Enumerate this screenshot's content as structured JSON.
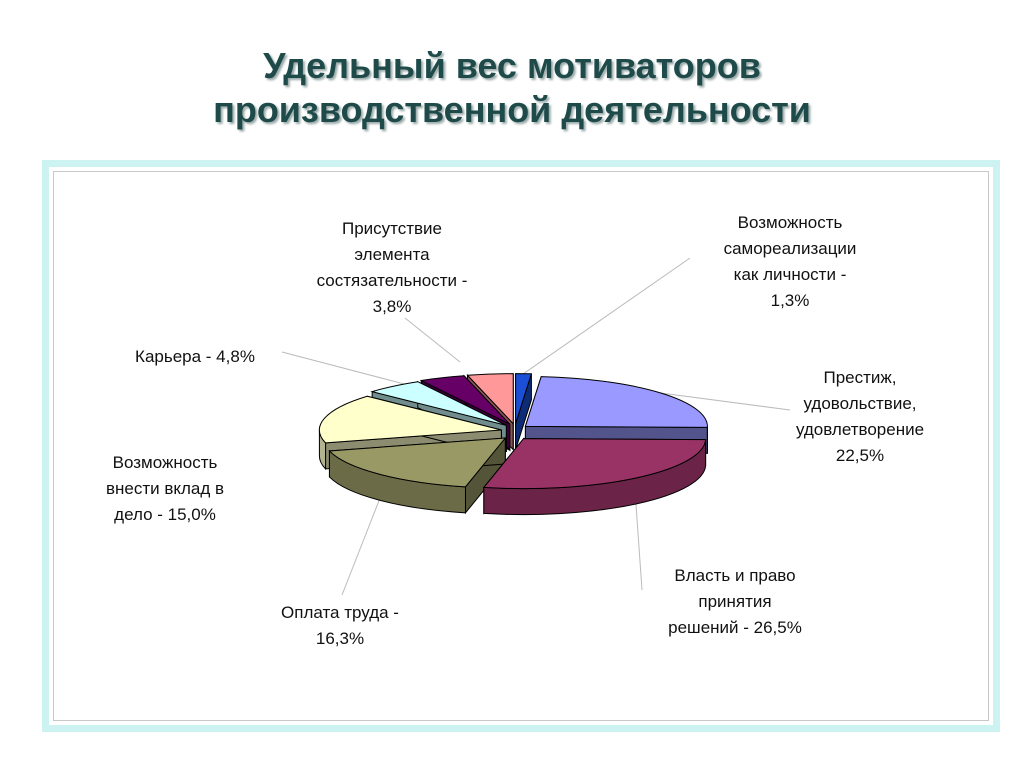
{
  "title_line1": "Удельный вес мотиваторов",
  "title_line2": "производственной деятельности",
  "chart_data": {
    "type": "pie",
    "title": "Удельный вес мотиваторов производственной деятельности",
    "legend": "none",
    "slices": [
      {
        "label": "Возможность самореализации как личности - 1,3%",
        "value": 1.3,
        "color": "#1a4fd6"
      },
      {
        "label": "Престиж, удовольствие, удовлетворение 22,5%",
        "value": 22.5,
        "color": "#9999ff"
      },
      {
        "label": "Власть и право принятия решений - 26,5%",
        "value": 26.5,
        "color": "#993366"
      },
      {
        "label": "Оплата труда - 16,3%",
        "value": 16.3,
        "color": "#999966"
      },
      {
        "label": "Возможность внести вклад в дело - 15,0%",
        "value": 15.0,
        "color": "#ffffcc"
      },
      {
        "label": "Карьера - 4,8%",
        "value": 4.8,
        "color": "#ccffff"
      },
      {
        "label": "Присутствие элемента состязательности - 3,8%",
        "value": 3.8,
        "color": "#660066"
      },
      {
        "label": "",
        "value": 3.8,
        "color": "#ff9999"
      }
    ]
  },
  "labels": {
    "self_realization": "Возможность\nсамореализации\nкак личности -\n1,3%",
    "prestige": "Престиж,\nудовольствие,\nудовлетворение\n22,5%",
    "power": "Власть и право\nпринятия\nрешений - 26,5%",
    "pay": "Оплата труда -\n16,3%",
    "contribution": "Возможность\nвнести вклад в\nдело - 15,0%",
    "career": "Карьера - 4,8%",
    "competition": "Присутствие\nэлемента\nсостязательности -\n3,8%"
  }
}
